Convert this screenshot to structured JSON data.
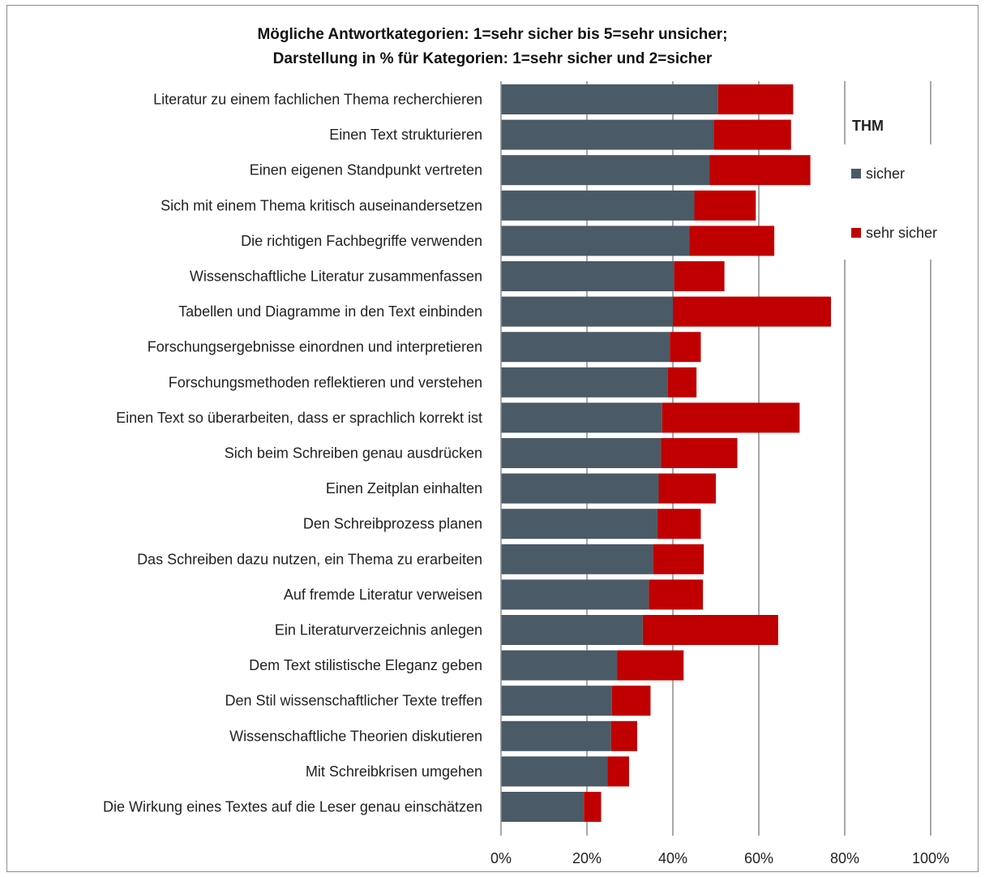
{
  "chart_data": {
    "type": "bar",
    "orientation": "horizontal",
    "stacked": true,
    "title_lines": [
      "Mögliche Antwortkategorien: 1=sehr sicher bis 5=sehr unsicher;",
      "Darstellung in % für Kategorien: 1=sehr sicher und 2=sicher"
    ],
    "legend_title": "THM",
    "legend_position": "right",
    "grid": true,
    "xlim": [
      0,
      100
    ],
    "x_ticks": [
      "0%",
      "20%",
      "40%",
      "60%",
      "80%",
      "100%"
    ],
    "categories": [
      "Literatur zu einem fachlichen Thema recherchieren",
      "Einen Text strukturieren",
      "Einen eigenen Standpunkt vertreten",
      "Sich mit einem Thema kritisch auseinandersetzen",
      "Die richtigen Fachbegriffe verwenden",
      "Wissenschaftliche Literatur zusammenfassen",
      "Tabellen und Diagramme in den Text einbinden",
      "Forschungsergebnisse einordnen und interpretieren",
      "Forschungsmethoden reflektieren und verstehen",
      "Einen Text so überarbeiten, dass er sprachlich korrekt ist",
      "Sich beim Schreiben genau ausdrücken",
      "Einen Zeitplan einhalten",
      "Den Schreibprozess planen",
      "Das Schreiben dazu nutzen, ein Thema zu erarbeiten",
      "Auf fremde Literatur verweisen",
      "Ein Literaturverzeichnis anlegen",
      "Dem Text stilistische Eleganz geben",
      "Den Stil wissenschaftlicher Texte treffen",
      "Wissenschaftliche Theorien diskutieren",
      "Mit Schreibkrisen umgehen",
      "Die Wirkung eines Textes auf die Leser genau einschätzen"
    ],
    "series": [
      {
        "name": "sicher",
        "color": "#4a5a66",
        "values": [
          50.5,
          49.5,
          48.5,
          45.0,
          43.8,
          40.3,
          40.0,
          39.3,
          38.8,
          37.5,
          37.2,
          36.7,
          36.4,
          35.4,
          34.4,
          33.0,
          27.0,
          25.8,
          25.6,
          24.8,
          19.3
        ]
      },
      {
        "name": "sehr sicher",
        "color": "#c00000",
        "values": [
          17.5,
          18.0,
          23.5,
          14.3,
          19.8,
          11.7,
          36.8,
          7.2,
          6.7,
          32.0,
          17.8,
          13.3,
          10.1,
          11.8,
          12.6,
          31.5,
          15.5,
          9.0,
          6.1,
          5.0,
          4.0
        ]
      }
    ]
  }
}
